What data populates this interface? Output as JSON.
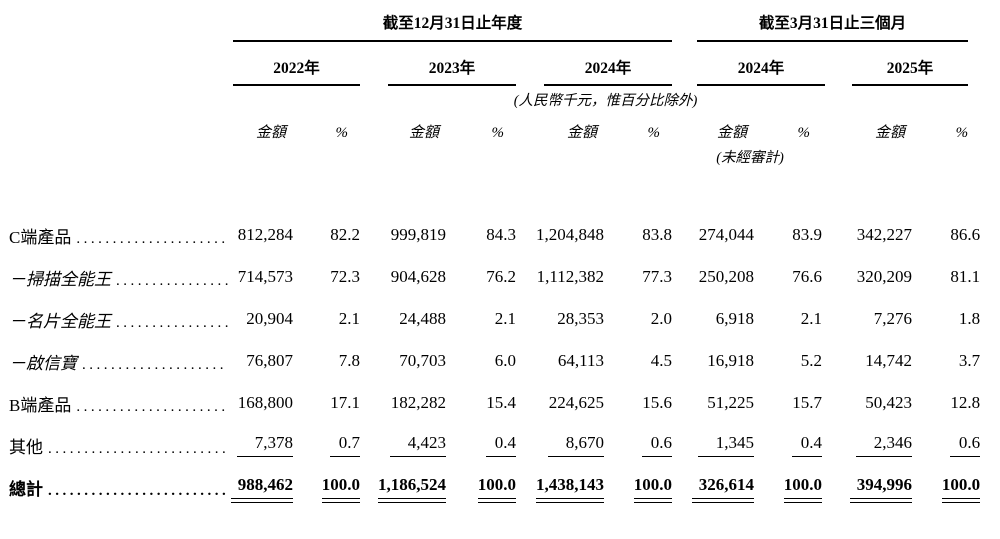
{
  "table": {
    "sections": [
      {
        "title": "截至12月31日止年度"
      },
      {
        "title": "截至3月31日止三個月"
      }
    ],
    "year_columns": [
      "2022年",
      "2023年",
      "2024年",
      "2024年",
      "2025年"
    ],
    "unit_note": "(人民幣千元，惟百分比除外)",
    "amount_header": "金額",
    "percent_header": "%",
    "unaudited_note": "(未經審計)",
    "leader_dots": "........................................................",
    "rows": [
      {
        "key": "c-products",
        "label": "C端產品",
        "label_style": "normal",
        "emphasis": "normal",
        "underline": "none",
        "values": [
          "812,284",
          "82.2",
          "999,819",
          "84.3",
          "1,204,848",
          "83.8",
          "274,044",
          "83.9",
          "342,227",
          "86.6"
        ]
      },
      {
        "key": "camscanner",
        "label": "－掃描全能王",
        "label_style": "italic",
        "emphasis": "normal",
        "underline": "none",
        "values": [
          "714,573",
          "72.3",
          "904,628",
          "76.2",
          "1,112,382",
          "77.3",
          "250,208",
          "76.6",
          "320,209",
          "81.1"
        ]
      },
      {
        "key": "camcard",
        "label": "－名片全能王",
        "label_style": "italic",
        "emphasis": "normal",
        "underline": "none",
        "values": [
          "20,904",
          "2.1",
          "24,488",
          "2.1",
          "28,353",
          "2.0",
          "6,918",
          "2.1",
          "7,276",
          "1.8"
        ]
      },
      {
        "key": "qixinbao",
        "label": "－啟信寶",
        "label_style": "italic",
        "emphasis": "normal",
        "underline": "none",
        "values": [
          "76,807",
          "7.8",
          "70,703",
          "6.0",
          "64,113",
          "4.5",
          "16,918",
          "5.2",
          "14,742",
          "3.7"
        ]
      },
      {
        "key": "b-products",
        "label": "B端產品",
        "label_style": "normal",
        "emphasis": "normal",
        "underline": "none",
        "values": [
          "168,800",
          "17.1",
          "182,282",
          "15.4",
          "224,625",
          "15.6",
          "51,225",
          "15.7",
          "50,423",
          "12.8"
        ]
      },
      {
        "key": "others",
        "label": "其他",
        "label_style": "normal",
        "emphasis": "normal",
        "underline": "single",
        "values": [
          "7,378",
          "0.7",
          "4,423",
          "0.4",
          "8,670",
          "0.6",
          "1,345",
          "0.4",
          "2,346",
          "0.6"
        ]
      },
      {
        "key": "total",
        "label": "總計",
        "label_style": "normal",
        "emphasis": "bold",
        "underline": "double",
        "values": [
          "988,462",
          "100.0",
          "1,186,524",
          "100.0",
          "1,438,143",
          "100.0",
          "326,614",
          "100.0",
          "394,996",
          "100.0"
        ]
      }
    ]
  }
}
